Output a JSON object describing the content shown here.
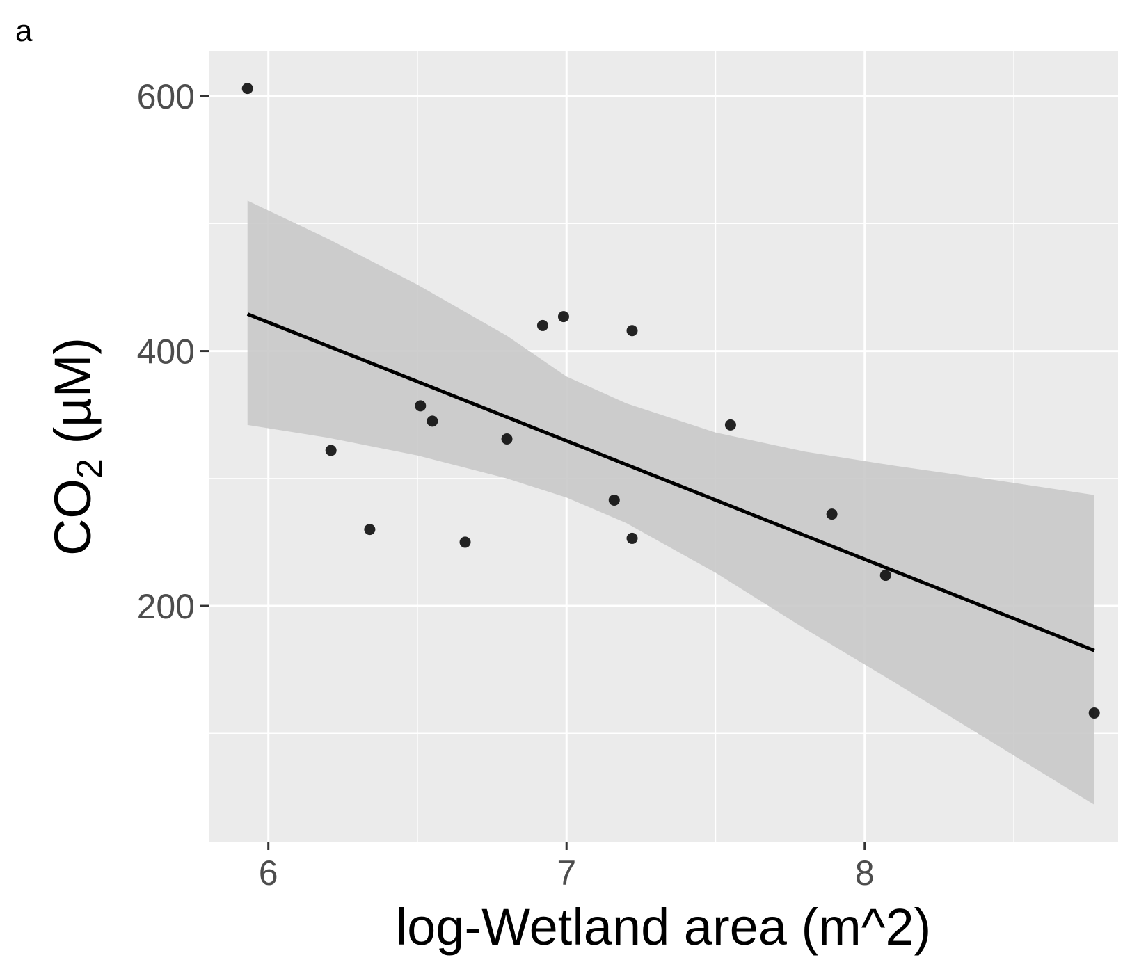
{
  "panel_label": "a",
  "chart_data": {
    "type": "scatter",
    "title": "",
    "xlabel": "log-Wetland area (m^2)",
    "ylabel": {
      "main": "CO",
      "subscript": "2",
      "unit": " (µM)"
    },
    "xlim": [
      5.8,
      8.85
    ],
    "ylim": [
      15,
      635
    ],
    "x_ticks": [
      6,
      7,
      8
    ],
    "y_ticks": [
      200,
      400,
      600
    ],
    "grid": true,
    "legend": "none",
    "colors": {
      "panel": "#ebebeb",
      "grid": "#ffffff",
      "point": "#000000",
      "line": "#000000",
      "band": "#c9c9c9"
    },
    "points": [
      {
        "x": 5.93,
        "y": 606
      },
      {
        "x": 6.21,
        "y": 322
      },
      {
        "x": 6.34,
        "y": 260
      },
      {
        "x": 6.51,
        "y": 357
      },
      {
        "x": 6.55,
        "y": 345
      },
      {
        "x": 6.66,
        "y": 250
      },
      {
        "x": 6.8,
        "y": 331
      },
      {
        "x": 6.92,
        "y": 420
      },
      {
        "x": 6.99,
        "y": 427
      },
      {
        "x": 7.16,
        "y": 283
      },
      {
        "x": 7.22,
        "y": 416
      },
      {
        "x": 7.22,
        "y": 253
      },
      {
        "x": 7.55,
        "y": 342
      },
      {
        "x": 7.89,
        "y": 272
      },
      {
        "x": 8.07,
        "y": 224
      },
      {
        "x": 8.77,
        "y": 116
      }
    ],
    "fit_line": [
      {
        "x": 5.93,
        "y": 429
      },
      {
        "x": 8.77,
        "y": 165
      }
    ],
    "confidence_band": {
      "upper": [
        {
          "x": 5.93,
          "y": 518
        },
        {
          "x": 6.2,
          "y": 488
        },
        {
          "x": 6.5,
          "y": 452
        },
        {
          "x": 6.8,
          "y": 412
        },
        {
          "x": 7.0,
          "y": 380
        },
        {
          "x": 7.2,
          "y": 359
        },
        {
          "x": 7.5,
          "y": 336
        },
        {
          "x": 7.8,
          "y": 321
        },
        {
          "x": 8.1,
          "y": 310
        },
        {
          "x": 8.4,
          "y": 300
        },
        {
          "x": 8.77,
          "y": 287
        }
      ],
      "lower": [
        {
          "x": 5.93,
          "y": 342
        },
        {
          "x": 6.2,
          "y": 332
        },
        {
          "x": 6.5,
          "y": 318
        },
        {
          "x": 6.8,
          "y": 300
        },
        {
          "x": 7.0,
          "y": 285
        },
        {
          "x": 7.2,
          "y": 265
        },
        {
          "x": 7.5,
          "y": 226
        },
        {
          "x": 7.8,
          "y": 182
        },
        {
          "x": 8.1,
          "y": 140
        },
        {
          "x": 8.4,
          "y": 97
        },
        {
          "x": 8.77,
          "y": 44
        }
      ]
    }
  }
}
